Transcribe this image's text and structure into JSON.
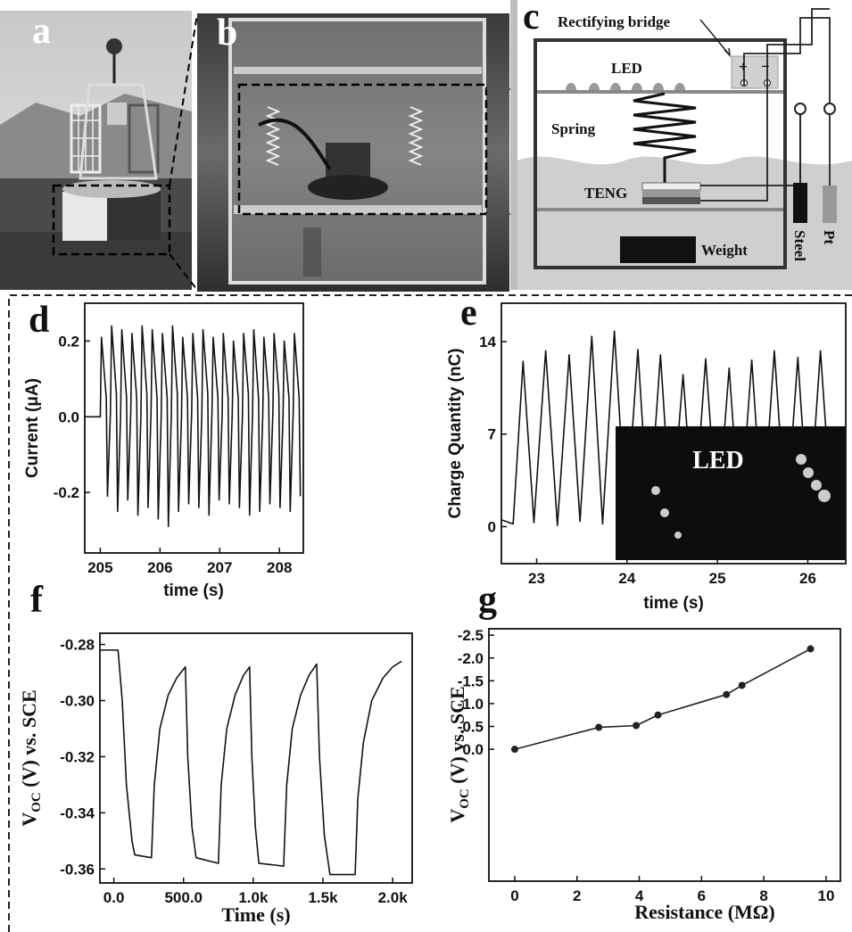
{
  "panel_labels": [
    "a",
    "b",
    "c",
    "d",
    "e",
    "f",
    "g"
  ],
  "diagram": {
    "labels": [
      "Rectifying bridge",
      "LED",
      "Spring",
      "TENG",
      "Weight",
      "Steel",
      "Pt",
      "+",
      "−"
    ]
  },
  "chart_data": [
    {
      "type": "line",
      "xlabel": "time (s)",
      "ylabel": "Current (μA)",
      "color": "#111",
      "xlim": [
        204.74,
        208.4
      ],
      "ylim": [
        -0.36,
        0.3
      ],
      "xticks": [
        205,
        206,
        207,
        208
      ],
      "yticks": [
        0.2,
        {
          "value": 0,
          "label": "0.0"
        },
        -0.2
      ],
      "x": [
        204.78,
        205.0,
        205.02,
        205.1,
        205.12,
        205.17,
        205.19,
        205.27,
        205.29,
        205.34,
        205.36,
        205.44,
        205.46,
        205.51,
        205.53,
        205.61,
        205.63,
        205.68,
        205.7,
        205.78,
        205.8,
        205.85,
        205.87,
        205.95,
        205.97,
        206.02,
        206.04,
        206.12,
        206.14,
        206.19,
        206.21,
        206.29,
        206.31,
        206.36,
        206.38,
        206.46,
        206.48,
        206.53,
        206.55,
        206.63,
        206.65,
        206.7,
        206.72,
        206.8,
        206.82,
        206.87,
        206.89,
        206.97,
        206.99,
        207.04,
        207.06,
        207.14,
        207.16,
        207.21,
        207.23,
        207.31,
        207.33,
        207.38,
        207.4,
        207.48,
        207.5,
        207.55,
        207.57,
        207.65,
        207.67,
        207.72,
        207.74,
        207.82,
        207.84,
        207.89,
        207.91,
        207.99,
        208.01,
        208.06,
        208.08,
        208.16,
        208.18,
        208.23,
        208.25,
        208.33,
        208.35
      ],
      "values": [
        0.0,
        0.0,
        0.21,
        0.05,
        -0.21,
        0.01,
        0.24,
        0.06,
        -0.25,
        0.0,
        0.23,
        0.05,
        -0.22,
        0.01,
        0.22,
        0.05,
        -0.26,
        0.0,
        0.24,
        0.06,
        -0.24,
        0.01,
        0.23,
        0.05,
        -0.27,
        0.0,
        0.22,
        0.05,
        -0.29,
        0.01,
        0.24,
        0.06,
        -0.25,
        0.0,
        0.21,
        0.05,
        -0.23,
        0.01,
        0.22,
        0.05,
        -0.24,
        0.0,
        0.23,
        0.06,
        -0.26,
        0.01,
        0.21,
        0.05,
        -0.22,
        0.0,
        0.22,
        0.05,
        -0.23,
        0.01,
        0.2,
        0.05,
        -0.24,
        0.0,
        0.22,
        0.06,
        -0.26,
        0.01,
        0.23,
        0.05,
        -0.25,
        0.0,
        0.21,
        0.05,
        -0.23,
        0.01,
        0.22,
        0.06,
        -0.24,
        0.0,
        0.2,
        0.05,
        -0.25,
        0.01,
        0.22,
        0.05,
        -0.21
      ]
    },
    {
      "type": "line",
      "xlabel": "time (s)",
      "ylabel": "Charge Quantity (nC)",
      "color": "#111",
      "annotation": "LED",
      "xlim": [
        22.61,
        26.42
      ],
      "ylim": [
        -2.8,
        16.9
      ],
      "xticks": [
        23,
        24,
        25,
        26
      ],
      "yticks": [
        0,
        7,
        14
      ],
      "x": [
        22.62,
        22.74,
        22.85,
        22.97,
        23.1,
        23.23,
        23.36,
        23.48,
        23.61,
        23.73,
        23.86,
        23.99,
        24.12,
        24.24,
        24.37,
        24.49,
        24.62,
        24.74,
        24.87,
        25.0,
        25.13,
        25.25,
        25.38,
        25.5,
        25.63,
        25.76,
        25.89,
        26.01,
        26.14,
        26.27
      ],
      "values": [
        0.5,
        0.2,
        12.5,
        0.3,
        13.3,
        0.1,
        13.0,
        0.4,
        14.4,
        0.2,
        14.8,
        0.3,
        13.4,
        0.2,
        13.0,
        0.3,
        11.5,
        0.2,
        12.7,
        0.3,
        12.0,
        0.2,
        12.6,
        0.3,
        13.3,
        0.2,
        12.8,
        0.3,
        13.3,
        0.4
      ]
    },
    {
      "type": "line",
      "xlabel": "Time (s)",
      "ylabel": [
        "V",
        "OC",
        " (V) vs. SCE"
      ],
      "color": "#111",
      "xlim": [
        -100,
        2140
      ],
      "ylim": [
        -0.365,
        -0.276
      ],
      "xticks": [
        {
          "value": 0,
          "label": "0.0"
        },
        {
          "value": 500,
          "label": "500.0"
        },
        {
          "value": 1000,
          "label": "1.0k"
        },
        {
          "value": 1500,
          "label": "1.5k"
        },
        {
          "value": 2000,
          "label": "2.0k"
        }
      ],
      "yticks": [
        -0.28,
        {
          "value": -0.3,
          "label": "-0.30"
        },
        -0.32,
        -0.34,
        -0.36
      ],
      "x": [
        -100,
        30,
        60,
        90,
        130,
        150,
        270,
        290,
        330,
        390,
        450,
        513,
        530,
        560,
        590,
        750,
        770,
        810,
        870,
        930,
        974,
        990,
        1015,
        1040,
        1218,
        1240,
        1280,
        1340,
        1400,
        1455,
        1475,
        1510,
        1550,
        1731,
        1750,
        1790,
        1850,
        1930,
        2000,
        2064
      ],
      "values": [
        -0.282,
        -0.282,
        -0.3,
        -0.33,
        -0.35,
        -0.355,
        -0.356,
        -0.33,
        -0.31,
        -0.298,
        -0.292,
        -0.288,
        -0.32,
        -0.345,
        -0.356,
        -0.358,
        -0.33,
        -0.31,
        -0.298,
        -0.291,
        -0.288,
        -0.32,
        -0.345,
        -0.358,
        -0.359,
        -0.33,
        -0.31,
        -0.298,
        -0.291,
        -0.287,
        -0.32,
        -0.348,
        -0.362,
        -0.362,
        -0.335,
        -0.315,
        -0.3,
        -0.292,
        -0.288,
        -0.286
      ]
    },
    {
      "type": "line",
      "xlabel": "Resistance (MΩ)",
      "ylabel": [
        "V",
        "OC",
        " (V) vs. SCE"
      ],
      "color": "#222",
      "markers": true,
      "xlim": [
        -0.83,
        10.46
      ],
      "ylim": [
        2.89,
        -2.64
      ],
      "xticks": [
        0,
        2,
        4,
        6,
        8,
        10
      ],
      "yticks": [
        {
          "value": -2.5,
          "label": "-2.5"
        },
        {
          "value": -2,
          "label": "-2.0"
        },
        {
          "value": -1.5,
          "label": "-1.5"
        },
        {
          "value": -1,
          "label": "-1.0"
        },
        {
          "value": -0.5,
          "label": "-0.5"
        },
        {
          "value": 0,
          "label": "0.0"
        }
      ],
      "x": [
        0,
        2.7,
        3.9,
        4.6,
        6.8,
        7.3,
        9.5
      ],
      "values": [
        0.0,
        -0.48,
        -0.52,
        -0.75,
        -1.2,
        -1.4,
        -2.2
      ]
    }
  ]
}
